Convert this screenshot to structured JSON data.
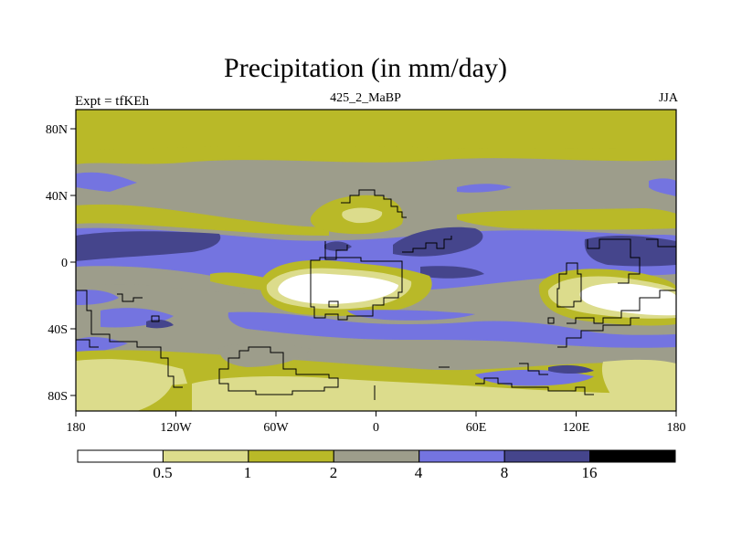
{
  "title": "Precipitation (in mm/day)",
  "left_label": "Expt = tfKEh",
  "center_label": "425_2_MaBP",
  "right_label": "JJA",
  "x_ticks": [
    "180",
    "120W",
    "60W",
    "0",
    "60E",
    "120E",
    "180"
  ],
  "y_ticks": [
    "80N",
    "40N",
    "0",
    "40S",
    "80S"
  ],
  "colorbar": {
    "labels": [
      "0.5",
      "1",
      "2",
      "4",
      "8",
      "16"
    ],
    "colors": [
      "#ffffff",
      "#dcdc8c",
      "#b9b928",
      "#9d9d8b",
      "#7474e0",
      "#45458c",
      "#000000"
    ]
  },
  "colors": {
    "pale": "#dcdc8c",
    "olive": "#b9b928",
    "gray": "#9d9d8b",
    "blue": "#7474e0",
    "navy": "#45458c",
    "white": "#ffffff"
  }
}
